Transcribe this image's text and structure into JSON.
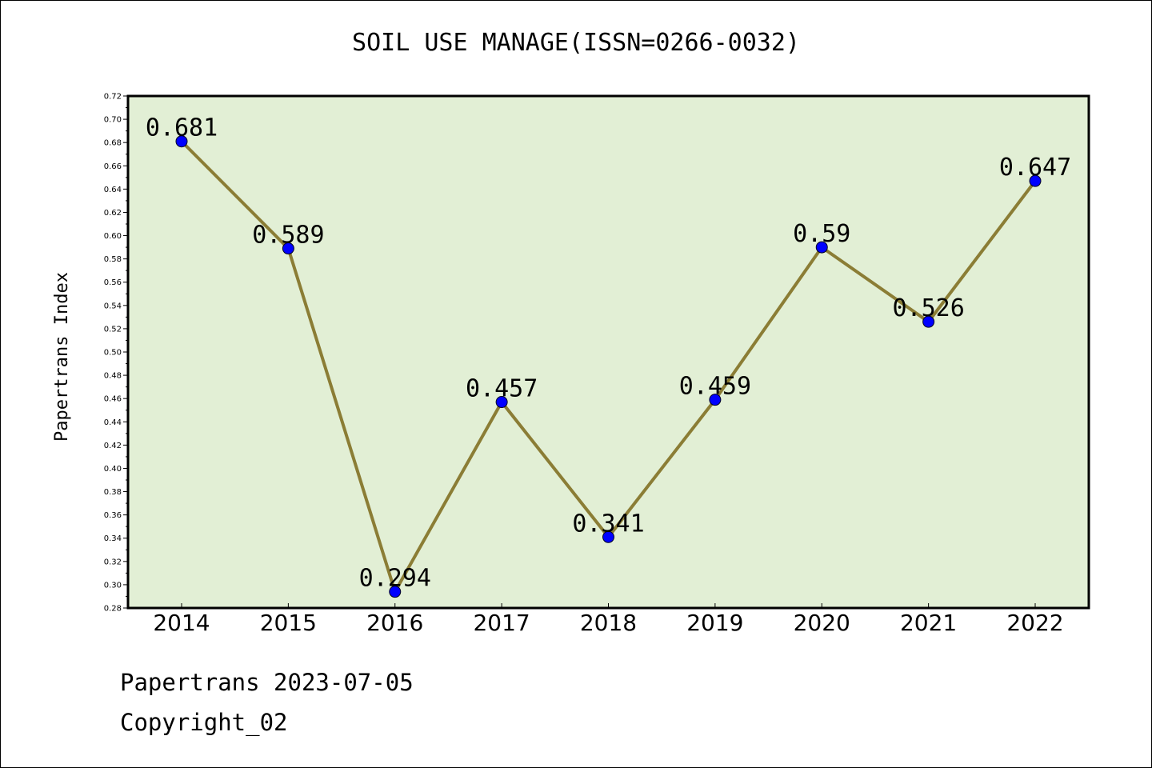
{
  "title": "SOIL USE MANAGE(ISSN=0266-0032)",
  "footer": {
    "line1": "Papertrans 2023-07-05",
    "line2": "Copyright_02"
  },
  "colors": {
    "plot_background": "#e2efd5",
    "line": "#8b7d35",
    "marker": "#0000ff",
    "frame": "#000000"
  },
  "chart_data": {
    "type": "line",
    "title": "SOIL USE MANAGE(ISSN=0266-0032)",
    "xlabel": "",
    "ylabel": "Papertrans Index",
    "categories": [
      "2014",
      "2015",
      "2016",
      "2017",
      "2018",
      "2019",
      "2020",
      "2021",
      "2022"
    ],
    "series": [
      {
        "values": [
          0.681,
          0.589,
          0.294,
          0.457,
          0.341,
          0.459,
          0.59,
          0.526,
          0.647
        ],
        "labels": [
          "0.681",
          "0.589",
          "0.294",
          "0.457",
          "0.341",
          "0.459",
          "0.59",
          "0.526",
          "0.647"
        ]
      }
    ],
    "ylim": [
      0.28,
      0.72
    ],
    "yticks": [
      "0.28",
      "0.30",
      "0.32",
      "0.34",
      "0.36",
      "0.38",
      "0.40",
      "0.42",
      "0.44",
      "0.46",
      "0.48",
      "0.50",
      "0.52",
      "0.54",
      "0.56",
      "0.58",
      "0.60",
      "0.62",
      "0.64",
      "0.66",
      "0.68",
      "0.70",
      "0.72"
    ],
    "grid": false,
    "legend": "none"
  }
}
